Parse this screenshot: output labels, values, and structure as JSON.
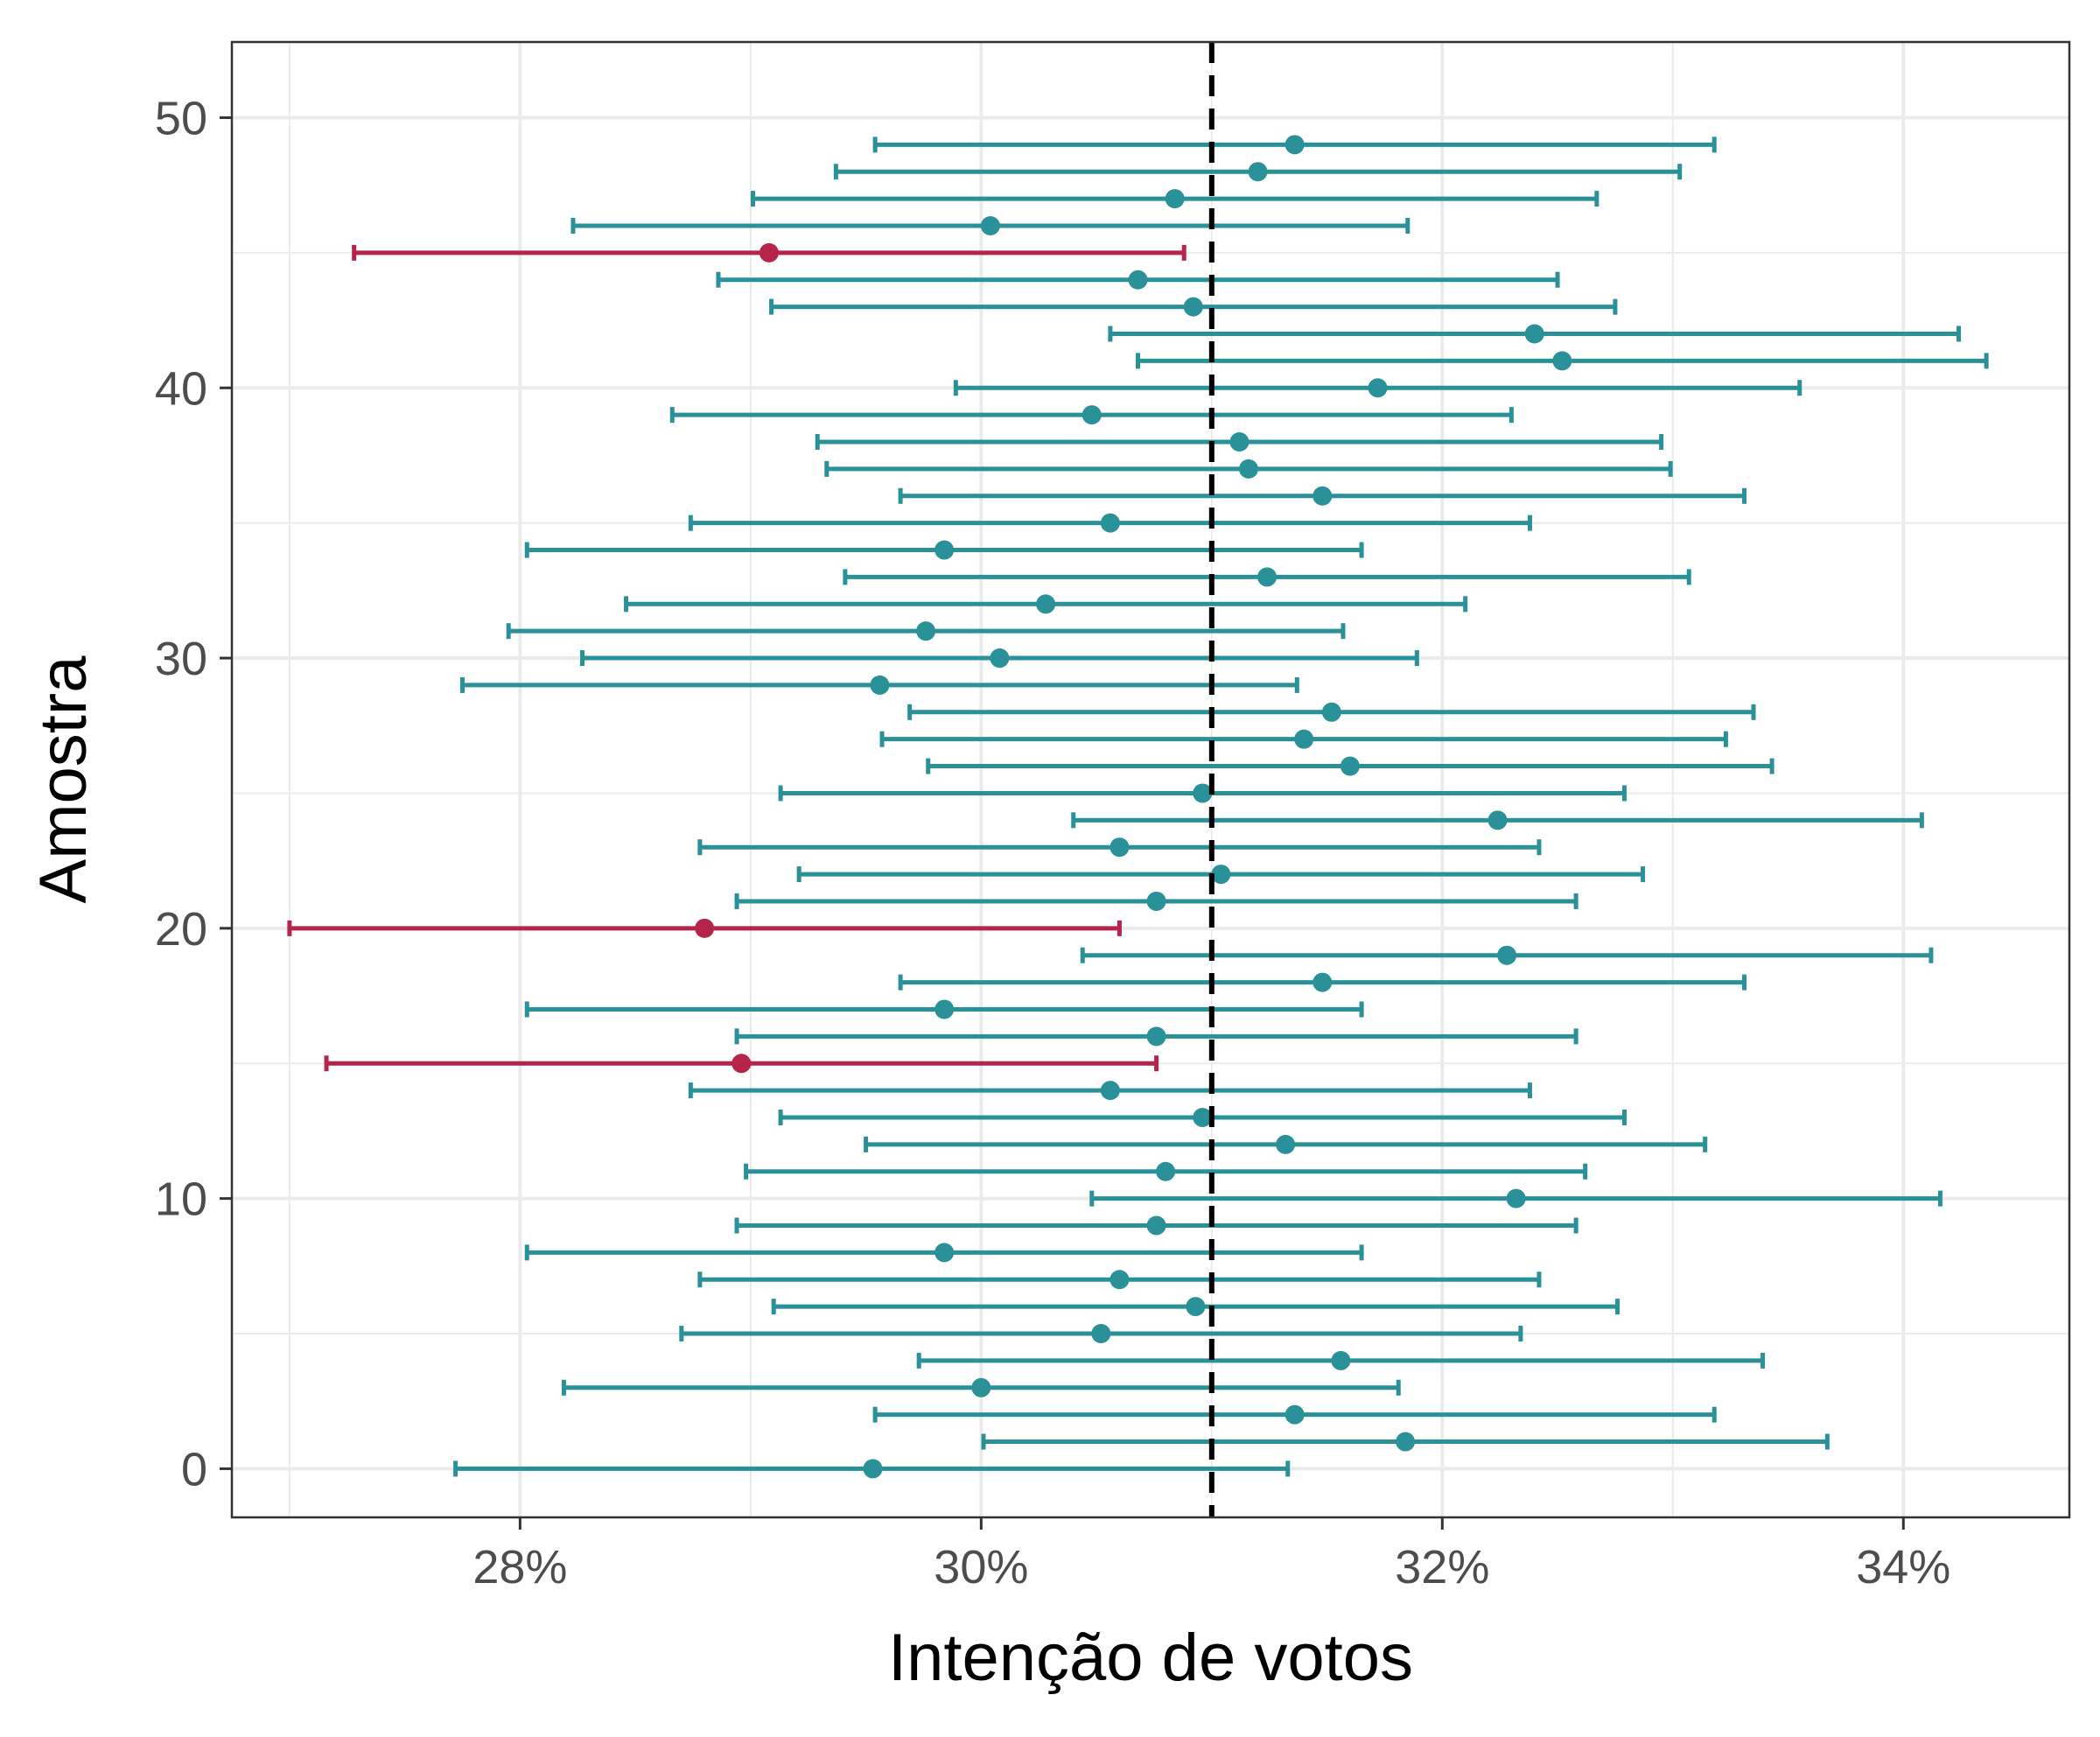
{
  "chart_data": {
    "type": "errorbar",
    "xlabel": "Intenção de votos",
    "ylabel": "Amostra",
    "xlim": [
      26.75,
      34.72
    ],
    "ylim": [
      -1.8,
      52.8
    ],
    "x_ticks": [
      28,
      30,
      32,
      34
    ],
    "x_tick_labels": [
      "28%",
      "30%",
      "32%",
      "34%"
    ],
    "y_ticks": [
      0,
      10,
      20,
      30,
      40,
      50
    ],
    "y_tick_labels": [
      "0",
      "10",
      "20",
      "30",
      "40",
      "50"
    ],
    "reference_line": {
      "value": 31,
      "style": "dashed",
      "color": "#000000"
    },
    "grid": true,
    "legend": "none",
    "colors": {
      "covers": "#2a9199",
      "misses": "#b5244b"
    },
    "intervals": [
      {
        "sample": 0,
        "estimate": 29.53,
        "lower": 27.72,
        "upper": 31.33,
        "covers_true": true
      },
      {
        "sample": 1,
        "estimate": 31.84,
        "lower": 30.01,
        "upper": 33.67,
        "covers_true": true
      },
      {
        "sample": 2,
        "estimate": 31.36,
        "lower": 29.54,
        "upper": 33.18,
        "covers_true": true
      },
      {
        "sample": 3,
        "estimate": 30.0,
        "lower": 28.19,
        "upper": 31.81,
        "covers_true": true
      },
      {
        "sample": 4,
        "estimate": 31.56,
        "lower": 29.73,
        "upper": 33.39,
        "covers_true": true
      },
      {
        "sample": 5,
        "estimate": 30.52,
        "lower": 28.7,
        "upper": 32.34,
        "covers_true": true
      },
      {
        "sample": 6,
        "estimate": 30.93,
        "lower": 29.1,
        "upper": 32.76,
        "covers_true": true
      },
      {
        "sample": 7,
        "estimate": 30.6,
        "lower": 28.78,
        "upper": 32.42,
        "covers_true": true
      },
      {
        "sample": 8,
        "estimate": 29.84,
        "lower": 28.03,
        "upper": 31.65,
        "covers_true": true
      },
      {
        "sample": 9,
        "estimate": 30.76,
        "lower": 28.94,
        "upper": 32.58,
        "covers_true": true
      },
      {
        "sample": 10,
        "estimate": 32.32,
        "lower": 30.48,
        "upper": 34.16,
        "covers_true": true
      },
      {
        "sample": 11,
        "estimate": 30.8,
        "lower": 28.98,
        "upper": 32.62,
        "covers_true": true
      },
      {
        "sample": 12,
        "estimate": 31.32,
        "lower": 29.5,
        "upper": 33.14,
        "covers_true": true
      },
      {
        "sample": 13,
        "estimate": 30.96,
        "lower": 29.13,
        "upper": 32.79,
        "covers_true": true
      },
      {
        "sample": 14,
        "estimate": 30.56,
        "lower": 28.74,
        "upper": 32.38,
        "covers_true": true
      },
      {
        "sample": 15,
        "estimate": 28.96,
        "lower": 27.16,
        "upper": 30.76,
        "covers_true": false
      },
      {
        "sample": 16,
        "estimate": 30.76,
        "lower": 28.94,
        "upper": 32.58,
        "covers_true": true
      },
      {
        "sample": 17,
        "estimate": 29.84,
        "lower": 28.03,
        "upper": 31.65,
        "covers_true": true
      },
      {
        "sample": 18,
        "estimate": 31.48,
        "lower": 29.65,
        "upper": 33.31,
        "covers_true": true
      },
      {
        "sample": 19,
        "estimate": 32.28,
        "lower": 30.44,
        "upper": 34.12,
        "covers_true": true
      },
      {
        "sample": 20,
        "estimate": 28.8,
        "lower": 27.0,
        "upper": 30.6,
        "covers_true": false
      },
      {
        "sample": 21,
        "estimate": 30.76,
        "lower": 28.94,
        "upper": 32.58,
        "covers_true": true
      },
      {
        "sample": 22,
        "estimate": 31.04,
        "lower": 29.21,
        "upper": 32.87,
        "covers_true": true
      },
      {
        "sample": 23,
        "estimate": 30.6,
        "lower": 28.78,
        "upper": 32.42,
        "covers_true": true
      },
      {
        "sample": 24,
        "estimate": 32.24,
        "lower": 30.4,
        "upper": 34.08,
        "covers_true": true
      },
      {
        "sample": 25,
        "estimate": 30.96,
        "lower": 29.13,
        "upper": 32.79,
        "covers_true": true
      },
      {
        "sample": 26,
        "estimate": 31.6,
        "lower": 29.77,
        "upper": 33.43,
        "covers_true": true
      },
      {
        "sample": 27,
        "estimate": 31.4,
        "lower": 29.57,
        "upper": 33.23,
        "covers_true": true
      },
      {
        "sample": 28,
        "estimate": 31.52,
        "lower": 29.69,
        "upper": 33.35,
        "covers_true": true
      },
      {
        "sample": 29,
        "estimate": 29.56,
        "lower": 27.75,
        "upper": 31.37,
        "covers_true": true
      },
      {
        "sample": 30,
        "estimate": 30.08,
        "lower": 28.27,
        "upper": 31.89,
        "covers_true": true
      },
      {
        "sample": 31,
        "estimate": 29.76,
        "lower": 27.95,
        "upper": 31.57,
        "covers_true": true
      },
      {
        "sample": 32,
        "estimate": 30.28,
        "lower": 28.46,
        "upper": 32.1,
        "covers_true": true
      },
      {
        "sample": 33,
        "estimate": 31.24,
        "lower": 29.41,
        "upper": 33.07,
        "covers_true": true
      },
      {
        "sample": 34,
        "estimate": 29.84,
        "lower": 28.03,
        "upper": 31.65,
        "covers_true": true
      },
      {
        "sample": 35,
        "estimate": 30.56,
        "lower": 28.74,
        "upper": 32.38,
        "covers_true": true
      },
      {
        "sample": 36,
        "estimate": 31.48,
        "lower": 29.65,
        "upper": 33.31,
        "covers_true": true
      },
      {
        "sample": 37,
        "estimate": 31.16,
        "lower": 29.33,
        "upper": 32.99,
        "covers_true": true
      },
      {
        "sample": 38,
        "estimate": 31.12,
        "lower": 29.29,
        "upper": 32.95,
        "covers_true": true
      },
      {
        "sample": 39,
        "estimate": 30.48,
        "lower": 28.66,
        "upper": 32.3,
        "covers_true": true
      },
      {
        "sample": 40,
        "estimate": 31.72,
        "lower": 29.89,
        "upper": 33.55,
        "covers_true": true
      },
      {
        "sample": 41,
        "estimate": 32.52,
        "lower": 30.68,
        "upper": 34.36,
        "covers_true": true
      },
      {
        "sample": 42,
        "estimate": 32.4,
        "lower": 30.56,
        "upper": 34.24,
        "covers_true": true
      },
      {
        "sample": 43,
        "estimate": 30.92,
        "lower": 29.09,
        "upper": 32.75,
        "covers_true": true
      },
      {
        "sample": 44,
        "estimate": 30.68,
        "lower": 28.86,
        "upper": 32.5,
        "covers_true": true
      },
      {
        "sample": 45,
        "estimate": 29.08,
        "lower": 27.28,
        "upper": 30.88,
        "covers_true": false
      },
      {
        "sample": 46,
        "estimate": 30.04,
        "lower": 28.23,
        "upper": 31.85,
        "covers_true": true
      },
      {
        "sample": 47,
        "estimate": 30.84,
        "lower": 29.01,
        "upper": 32.67,
        "covers_true": true
      },
      {
        "sample": 48,
        "estimate": 31.2,
        "lower": 29.37,
        "upper": 33.03,
        "covers_true": true
      },
      {
        "sample": 49,
        "estimate": 31.36,
        "lower": 29.54,
        "upper": 33.18,
        "covers_true": true
      }
    ]
  }
}
